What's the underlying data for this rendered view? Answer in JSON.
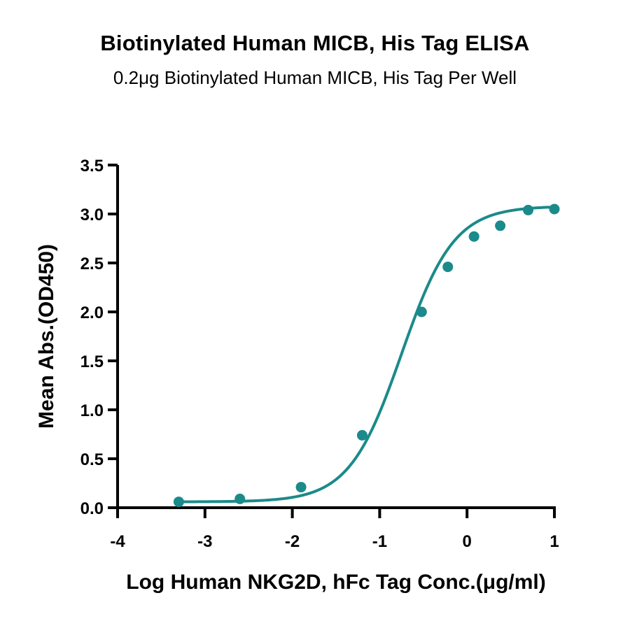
{
  "chart_data": {
    "type": "scatter",
    "title": "Biotinylated Human MICB, His Tag ELISA",
    "subtitle": "0.2μg Biotinylated Human MICB, His Tag Per Well",
    "xlabel": "Log Human NKG2D, hFc Tag Conc.(μg/ml)",
    "ylabel": "Mean Abs.(OD450)",
    "xlim": [
      -4,
      1
    ],
    "ylim": [
      0,
      3.5
    ],
    "x_ticks": [
      "-4",
      "-3",
      "-2",
      "-1",
      "0",
      "1"
    ],
    "y_ticks": [
      "0.0",
      "0.5",
      "1.0",
      "1.5",
      "2.0",
      "2.5",
      "3.0",
      "3.5"
    ],
    "grid": false,
    "colors": {
      "series": "#1b8a8a"
    },
    "series": [
      {
        "x": [
          -3.3,
          -2.6,
          -1.9,
          -1.2,
          -0.52,
          -0.22,
          0.08,
          0.38,
          0.7,
          1.0
        ],
        "y": [
          0.06,
          0.09,
          0.21,
          0.74,
          2.0,
          2.46,
          2.77,
          2.88,
          3.04,
          3.05
        ]
      }
    ],
    "fit_curve": {
      "model": "4PL",
      "bottom": 0.06,
      "top": 3.08,
      "log_ec50": -0.75,
      "hill_slope": 1.45,
      "x_range": [
        -3.3,
        1.0
      ]
    }
  }
}
